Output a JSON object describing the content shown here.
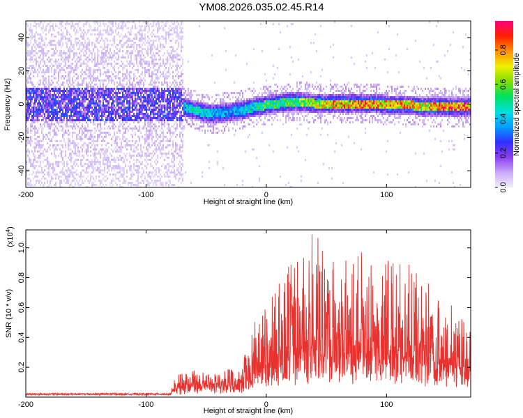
{
  "title": "YM08.2026.035.02.45.R14",
  "colors": {
    "snr_line": "#e8322f",
    "colorbar_stops": [
      "#f0f0ff",
      "#c8a8f8",
      "#8c3cf0",
      "#3030ff",
      "#00a0ff",
      "#00e0e0",
      "#00e060",
      "#80e000",
      "#f0f000",
      "#ff9000",
      "#ff2000",
      "#ff0080"
    ]
  },
  "chart_data": [
    {
      "id": "spectrogram",
      "type": "heatmap",
      "xlabel": "Height of straight line (km)",
      "ylabel": "Frequency (Hz)",
      "xlim": [
        -200,
        170
      ],
      "ylim": [
        -50,
        50
      ],
      "xticks": [
        -200,
        -100,
        0,
        100
      ],
      "yticks": [
        -40,
        -20,
        0,
        20,
        40
      ],
      "colorbar": {
        "label": "Normalized spectral amplitude",
        "range": [
          0.0,
          0.97
        ],
        "ticks": [
          "0.0",
          "0.2",
          "0.4",
          "0.6",
          "0.8"
        ],
        "tick_values": [
          0.0,
          0.2,
          0.4,
          0.6,
          0.8
        ]
      },
      "ridge": {
        "x": [
          -70,
          -60,
          -50,
          -40,
          -30,
          -20,
          -10,
          0,
          10,
          20,
          30,
          40,
          50,
          60,
          70,
          80,
          90,
          100,
          110,
          120,
          130,
          140,
          150,
          160,
          170
        ],
        "frequency": [
          -1,
          -3,
          -5,
          -5,
          -4,
          -3,
          -1,
          0,
          1,
          2,
          2,
          1,
          1,
          1,
          1,
          1,
          1,
          0,
          0,
          0,
          -1,
          -1,
          -1,
          -1,
          -1
        ],
        "amplitude": [
          0.45,
          0.5,
          0.45,
          0.4,
          0.4,
          0.45,
          0.5,
          0.6,
          0.55,
          0.6,
          0.65,
          0.7,
          0.75,
          0.85,
          0.8,
          0.9,
          0.85,
          0.8,
          0.85,
          0.8,
          0.75,
          0.85,
          0.9,
          0.95,
          0.9
        ]
      },
      "noise_region": {
        "x_range": [
          -200,
          -70
        ],
        "core_halfwidth_hz": 10
      }
    },
    {
      "id": "snr",
      "type": "line",
      "xlabel": "Height of straight line (km)",
      "ylabel": "SNR (10 * v/v)",
      "y_multiplier": "(x10",
      "y_multiplier_exp": "4",
      "y_multiplier_close": ")",
      "xlim": [
        -200,
        170
      ],
      "ylim": [
        0,
        1.12
      ],
      "xticks": [
        -200,
        -100,
        0,
        100
      ],
      "yticks": [
        0.2,
        0.4,
        0.6,
        0.8,
        1.0
      ],
      "ytick_labels": [
        "0.2",
        "0.4",
        "0.6",
        "0.8",
        "1.0"
      ],
      "envelope": {
        "x": [
          -200,
          -80,
          -75,
          -60,
          -40,
          -30,
          -20,
          -15,
          -10,
          -5,
          0,
          10,
          20,
          30,
          40,
          50,
          60,
          70,
          80,
          90,
          100,
          110,
          120,
          130,
          140,
          150,
          160,
          170
        ],
        "baseline": [
          0.02,
          0.02,
          0.05,
          0.06,
          0.08,
          0.05,
          0.07,
          0.12,
          0.14,
          0.16,
          0.18,
          0.2,
          0.22,
          0.25,
          0.25,
          0.25,
          0.25,
          0.25,
          0.25,
          0.25,
          0.25,
          0.25,
          0.25,
          0.22,
          0.2,
          0.2,
          0.18,
          0.16
        ],
        "peak": [
          0.03,
          0.03,
          0.15,
          0.18,
          0.15,
          0.2,
          0.2,
          0.45,
          0.5,
          0.6,
          0.62,
          0.75,
          0.9,
          1.0,
          1.12,
          0.95,
          0.95,
          0.9,
          1.0,
          0.9,
          0.95,
          0.9,
          0.95,
          0.9,
          0.75,
          0.7,
          0.6,
          0.45
        ]
      }
    }
  ]
}
